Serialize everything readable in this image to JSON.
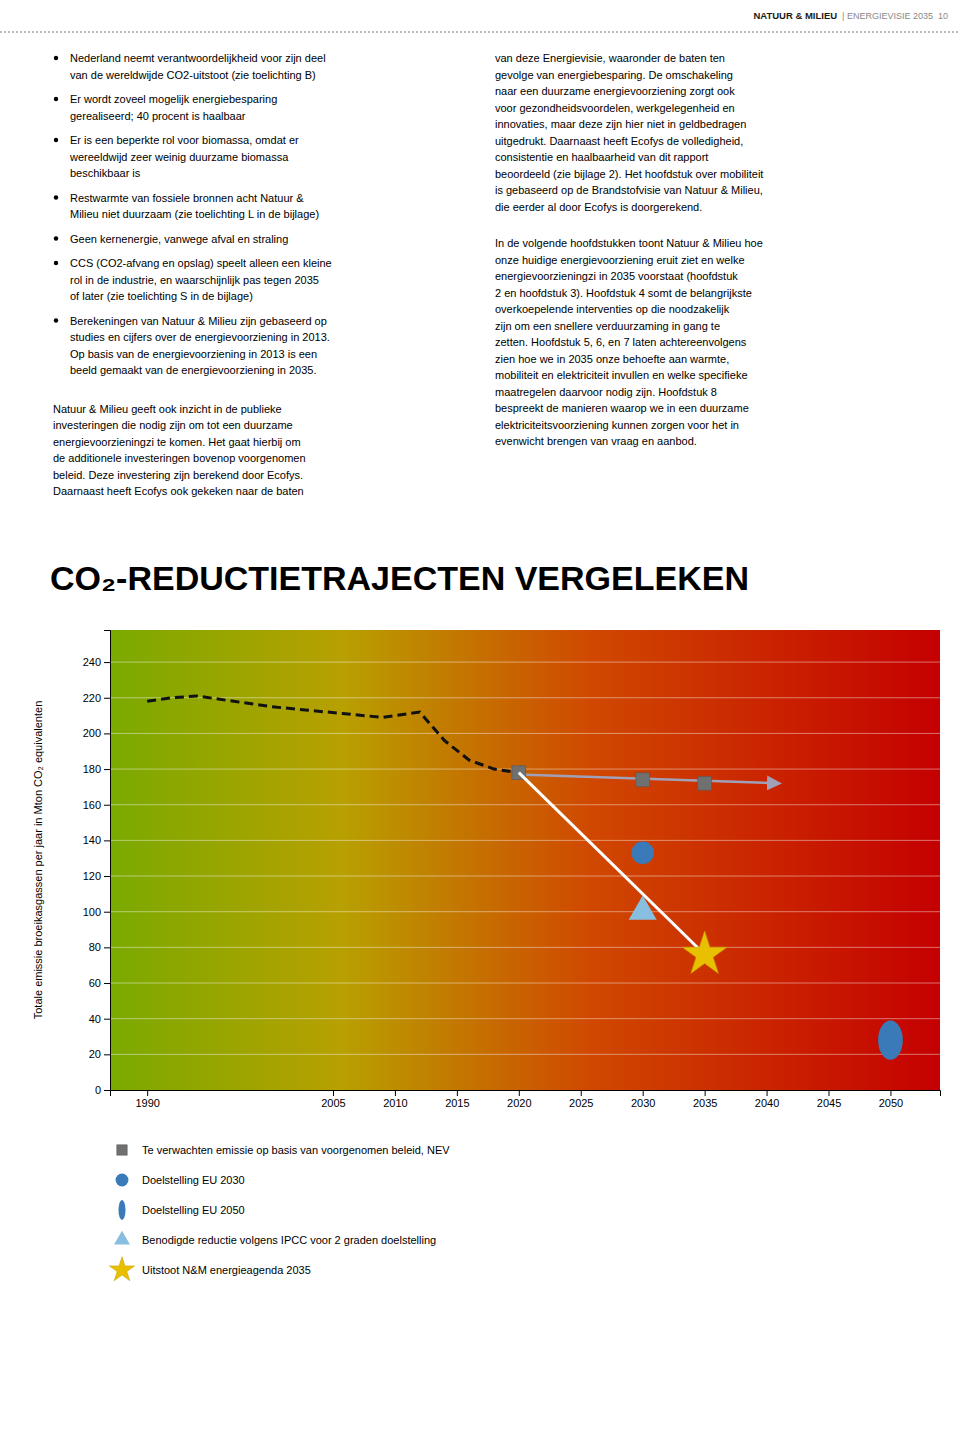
{
  "chart_data": {
    "type": "line",
    "title": "CO₂-REDUCTIETRAJECTEN VERGELEKEN",
    "y_label": "Totale emissie broeikasgassen per jaar in Mton CO₂ equivalenten",
    "annotations": [
      [
        "NATUUR & MILIEU",
        "| ENERGIEVISIE 2035  10"
      ],
      [
        "Nederland neemt verantwoordelijkheid voor zijn deel\nvan de wereldwijde CO2-uitstoot (zie toelichting B)",
        "Er wordt zoveel mogelijk energiebesparing\ngerealiseerd; 40 procent is haalbaar",
        "Er is een beperkte rol voor biomassa, omdat er\nwereeldwijd zeer weinig duurzame biomassa\nbeschikbaar is",
        "Restwarmte van fossiele bronnen acht Natuur &\nMilieu niet duurzaam (zie toelichting L in de bijlage)",
        "Geen kernenergie, vanwege afval en straling",
        "CCS (CO2-afvang en opslag) speelt alleen een kleine\nrol in de industrie, en waarschijnlijk pas tegen 2035\nof later (zie toelichting S in de bijlage)",
        "Berekeningen van Natuur & Milieu zijn gebaseerd op\nstudies en cijfers over de energievoorziening in 2013.\nOp basis van de energievoorziening in 2013 is een\nbeeld gemaakt van de energievoorziening in 2035."
      ],
      [
        "Natuur & Milieu geeft ook inzicht in de publieke\ninvesteringen die nodig zijn om tot een duurzame\nenergievoorzieningzi te komen. Het gaat hierbij om\nde additionele investeringen bovenop voorgenomen\nbeleid. Deze investering zijn berekend door Ecofys.\nDaarnaast heeft Ecofys ook gekeken naar de baten"
      ],
      [
        "van deze Energievisie, waaronder de baten ten\ngevolge van energiebesparing. De omschakeling\nnaar een duurzame energievoorziening zorgt ook\nvoor gezondheidsvoordelen, werkgelegenheid en\ninnovaties, maar deze zijn hier niet in geldbedragen\nuitgedrukt. Daarnaast heeft Ecofys de volledigheid,\nconsistentie en haalbaarheid van dit rapport\nbeoordeeld (zie bijlage 2). Het hoofdstuk over mobiliteit\nis gebaseerd op de Brandstofvisie van Natuur & Milieu,\ndie eerder al door Ecofys is doorgerekend.",
        "In de volgende hoofdstukken toont Natuur & Milieu hoe\nonze huidige energievoorziening eruit ziet en welke\nenergievoorzieningzi in 2035 voorstaat (hoofdstuk\n2 en hoofdstuk 3). Hoofdstuk 4 somt de belangrijkste\noverkoepelende interventies op die noodzakelijk\nzijn om een snellere verduurzaming in gang te\nzetten. Hoofdstuk 5, 6, en 7 laten achtereenvolgens\nzien hoe we in 2035 onze behoefte aan warmte,\nmobiliteit en elektriciteit invullen en welke specifieke\nmaatregelen daarvoor nodig zijn. Hoofdstuk 8\nbespreekt de manieren waarop we in een duurzame\nelektriciteitsvoorziening kunnen zorgen voor het in\nevenwicht brengen van vraag en aanbod."
      ]
    ],
    "xlim": [
      1987,
      2054
    ],
    "xticks": [
      1990,
      2005,
      2010,
      2015,
      2020,
      2025,
      2030,
      2035,
      2040,
      2045,
      2050
    ],
    "ylim": [
      0,
      258
    ],
    "yticks": [
      0,
      20,
      40,
      60,
      80,
      100,
      120,
      140,
      160,
      180,
      200,
      220,
      240
    ],
    "grid": true,
    "legend": "bottom",
    "series": [
      {
        "type": "line",
        "line_style": "dashed",
        "color": "#111111",
        "x": [
          1990,
          1992,
          1994,
          1997,
          2000,
          2003,
          2006,
          2009,
          2012,
          2014,
          2016,
          2018,
          2020
        ],
        "values": [
          218,
          220,
          221,
          218,
          215,
          213,
          211,
          209,
          212,
          196,
          185,
          180,
          178
        ]
      },
      {
        "type": "line",
        "marker": "arrow",
        "color": "#a0a0b8",
        "x": [
          2020,
          2041
        ],
        "values": [
          177,
          172
        ]
      },
      {
        "name": "Te verwachten emissie op basis van voorgenomen beleid, NEV",
        "type": "scatter",
        "marker": "square",
        "color": "#707070",
        "x": [
          2020,
          2030,
          2035
        ],
        "values": [
          178,
          174,
          172
        ]
      },
      {
        "type": "line",
        "line_style": "solid",
        "color": "#ffffff",
        "x": [
          2020,
          2035
        ],
        "values": [
          178,
          76
        ]
      },
      {
        "name": "Doelstelling EU 2030",
        "type": "scatter",
        "marker": "circle",
        "color": "#3a7ab8",
        "x": [
          2030
        ],
        "values": [
          133
        ]
      },
      {
        "name": "Doelstelling EU 2050",
        "type": "scatter",
        "marker": "ellipse",
        "color": "#3a7ab8",
        "x": [
          2050
        ],
        "values": [
          28
        ],
        "heights": [
          22
        ],
        "widths": [
          2.0
        ]
      },
      {
        "name": "Benodigde reductie volgens IPCC voor 2 graden doelstelling",
        "type": "scatter",
        "marker": "triangle",
        "color": "#88bfe0",
        "x": [
          2030
        ],
        "values": [
          100
        ]
      },
      {
        "name": "Uitstoot N&M energieagenda 2035",
        "type": "scatter",
        "marker": "star",
        "color": "#e8c000",
        "x": [
          2035
        ],
        "values": [
          76
        ]
      }
    ]
  }
}
